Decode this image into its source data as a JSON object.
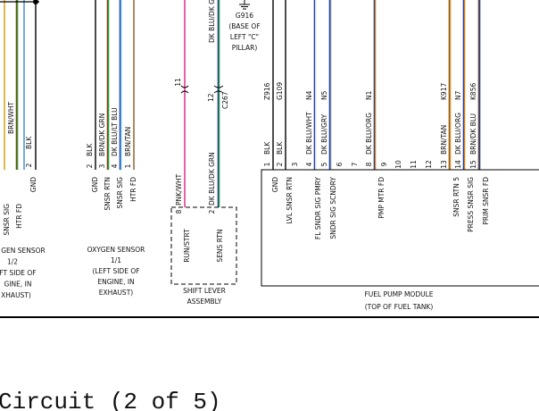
{
  "o2_sensor_1_2": {
    "wire_colors": [
      "BRN/WHT",
      "BLK"
    ],
    "pins": [
      "2"
    ],
    "functions": [
      "SNSR SIG",
      "HTR FD",
      "GND"
    ],
    "caption": [
      "GEN SENSOR",
      "1/2",
      "FT SIDE OF",
      "GINE, IN",
      "XHAUST)"
    ]
  },
  "o2_sensor_1_1": {
    "wire_colors": [
      "BLK",
      "BRN/DK GRN",
      "DK BLU/LT BLU",
      "BRN/TAN"
    ],
    "pins": [
      "2",
      "3",
      "4",
      "1"
    ],
    "functions": [
      "GND",
      "SNSR RTN",
      "SNSR SIG",
      "HTR FD"
    ],
    "caption": [
      "OXYGEN SENSOR",
      "1/1",
      "(LEFT SIDE OF",
      "ENGINE, IN",
      "EXHAUST)"
    ]
  },
  "shift_lever": {
    "top_wire": "DK BLU/DK GRN",
    "inline_pins": [
      "11",
      "12"
    ],
    "connector": "C267",
    "pins": [
      "8",
      "2"
    ],
    "wire_colors": [
      "PNK/WHT",
      "DK BLU/DK GRN"
    ],
    "functions": [
      "RUN/STRT",
      "SENS RTN"
    ],
    "caption": [
      "SHIFT LEVER",
      "ASSEMBLY"
    ]
  },
  "ground": {
    "id": "G916",
    "location": [
      "(BASE OF",
      "LEFT \"C\"",
      "PILLAR)"
    ]
  },
  "fuel_pump_module": {
    "pins": [
      "1",
      "2",
      "3",
      "4",
      "5",
      "6",
      "7",
      "8",
      "9",
      "10",
      "11",
      "12",
      "13",
      "14",
      "15"
    ],
    "wires": [
      {
        "circuit": "Z916",
        "color": "BLK"
      },
      {
        "circuit": "G109",
        "color": "BLK"
      },
      {
        "circuit": "N4",
        "color": "DK BLU/WHT"
      },
      {
        "circuit": "N5",
        "color": "DK BLU/GRY"
      },
      {
        "circuit": "N1",
        "color": "DK BLU/ORG"
      },
      {
        "circuit": "K917",
        "color": "BRN/TAN"
      },
      {
        "circuit": "N7",
        "color": "DK BLU/ORG"
      },
      {
        "circuit": "K856",
        "color": "BRN/DK BLU"
      }
    ],
    "functions": [
      "GND",
      "LVL SNSR RTN",
      "FL SNDR SIG PMRY",
      "SNDR SIG SCNDRY",
      "PMP MTR FD",
      "SNSR RTN 5",
      "PRESS SNSR SIG",
      "PRIM SNSR FD"
    ],
    "caption": [
      "FUEL PUMP MODULE",
      "(TOP OF FUEL TANK)"
    ]
  },
  "footer": {
    "title": "Circuit (2 of 5)"
  }
}
